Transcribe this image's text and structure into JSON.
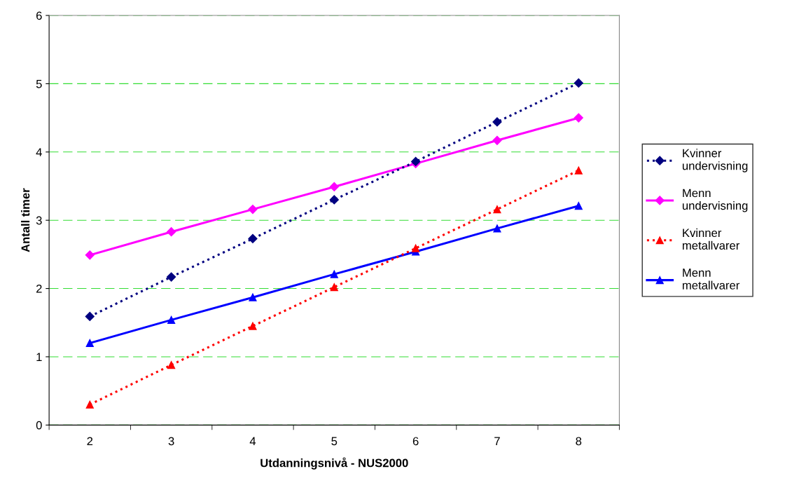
{
  "chart_data": {
    "type": "line",
    "xlabel": "Utdanningsnivå - NUS2000",
    "ylabel": "Antall timer",
    "categories": [
      "2",
      "3",
      "4",
      "5",
      "6",
      "7",
      "8"
    ],
    "series": [
      {
        "name": "Kvinner undervisning",
        "color": "#000080",
        "marker": "diamond",
        "line_style": "dotted",
        "values": [
          1.59,
          2.17,
          2.73,
          3.3,
          3.86,
          4.44,
          5.01
        ]
      },
      {
        "name": "Menn undervisning",
        "color": "#ff00ff",
        "marker": "diamond",
        "line_style": "solid",
        "values": [
          2.49,
          2.83,
          3.16,
          3.49,
          3.83,
          4.17,
          4.5
        ]
      },
      {
        "name": "Kvinner metallvarer",
        "color": "#ff0000",
        "marker": "triangle",
        "line_style": "dotted",
        "values": [
          0.3,
          0.88,
          1.45,
          2.02,
          2.59,
          3.16,
          3.73
        ]
      },
      {
        "name": "Menn metallvarer",
        "color": "#0000ff",
        "marker": "triangle",
        "line_style": "solid",
        "values": [
          1.2,
          1.54,
          1.87,
          2.21,
          2.54,
          2.88,
          3.21
        ]
      }
    ],
    "ylim": [
      0,
      6
    ],
    "yticks": [
      0,
      1,
      2,
      3,
      4,
      5,
      6
    ],
    "grid": "y",
    "legend": "right"
  }
}
